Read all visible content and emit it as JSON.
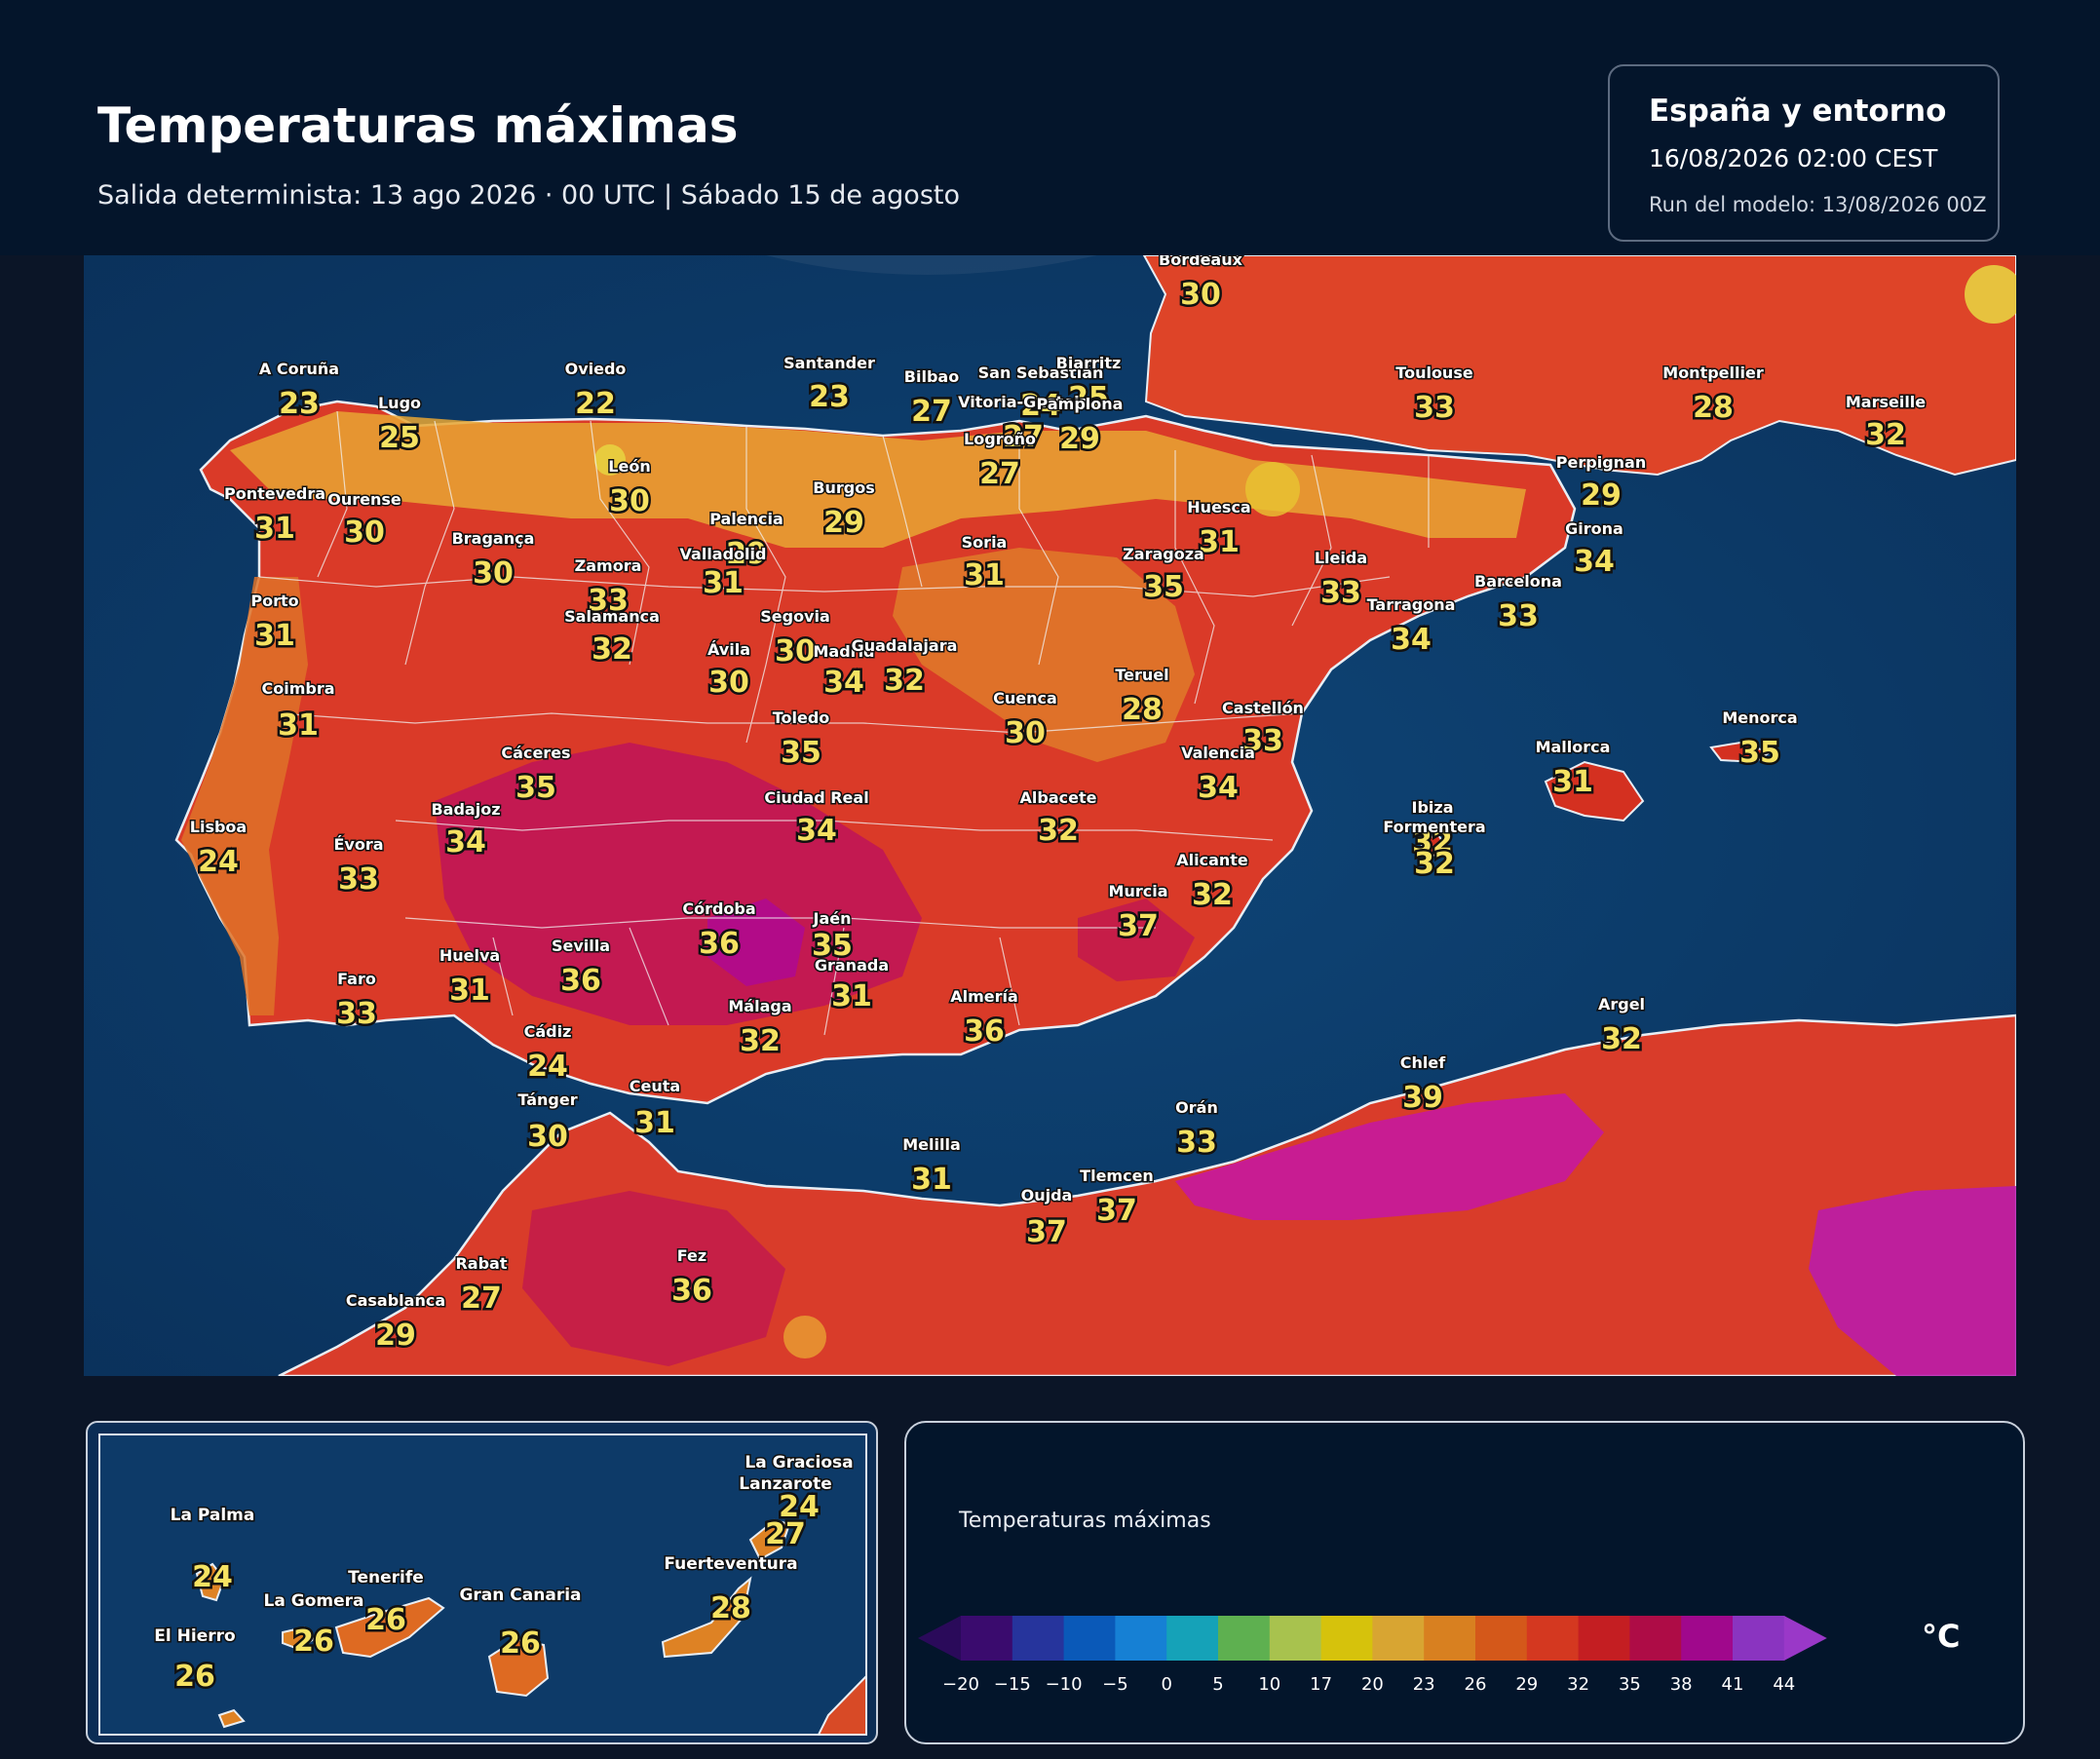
{
  "header": {
    "title": "Temperaturas máximas",
    "subtitle": "Salida determinista: 13 ago 2026 · 00 UTC  |  Sábado 15 de agosto",
    "region": "España y entorno",
    "valid": "16/08/2026  02:00 CEST",
    "run": "Run del modelo: 13/08/2026 00Z"
  },
  "map": {
    "stations": [
      {
        "name": "Bordeaux",
        "temp": "30"
      },
      {
        "name": "A Coruña",
        "temp": "23"
      },
      {
        "name": "Lugo",
        "temp": "25"
      },
      {
        "name": "Oviedo",
        "temp": "22"
      },
      {
        "name": "Santander",
        "temp": "23"
      },
      {
        "name": "Bilbao",
        "temp": "27"
      },
      {
        "name": "San Sebastián",
        "temp": "24"
      },
      {
        "name": "Biarritz",
        "temp": "25"
      },
      {
        "name": "Vitoria-Gasteiz",
        "temp": "27"
      },
      {
        "name": "Pamplona",
        "temp": "29"
      },
      {
        "name": "Logroño",
        "temp": "27"
      },
      {
        "name": "Toulouse",
        "temp": "33"
      },
      {
        "name": "Montpellier",
        "temp": "28"
      },
      {
        "name": "Marseille",
        "temp": "32"
      },
      {
        "name": "Pontevedra",
        "temp": "31"
      },
      {
        "name": "Ourense",
        "temp": "30"
      },
      {
        "name": "León",
        "temp": "30"
      },
      {
        "name": "Burgos",
        "temp": "29"
      },
      {
        "name": "Palencia",
        "temp": "29"
      },
      {
        "name": "Soria",
        "temp": "31"
      },
      {
        "name": "Huesca",
        "temp": "31"
      },
      {
        "name": "Perpignan",
        "temp": "29"
      },
      {
        "name": "Girona",
        "temp": "34"
      },
      {
        "name": "Bragança",
        "temp": "30"
      },
      {
        "name": "Zamora",
        "temp": "33"
      },
      {
        "name": "Valladolid",
        "temp": "31"
      },
      {
        "name": "Zaragoza",
        "temp": "35"
      },
      {
        "name": "Lleida",
        "temp": "33"
      },
      {
        "name": "Barcelona",
        "temp": "33"
      },
      {
        "name": "Porto",
        "temp": "31"
      },
      {
        "name": "Salamanca",
        "temp": "32"
      },
      {
        "name": "Segovia",
        "temp": "30"
      },
      {
        "name": "Tarragona",
        "temp": "34"
      },
      {
        "name": "Ávila",
        "temp": "30"
      },
      {
        "name": "Madrid",
        "temp": "34"
      },
      {
        "name": "Guadalajara",
        "temp": "32"
      },
      {
        "name": "Teruel",
        "temp": "28"
      },
      {
        "name": "Coimbra",
        "temp": "31"
      },
      {
        "name": "Cuenca",
        "temp": "30"
      },
      {
        "name": "Castellón",
        "temp": "33"
      },
      {
        "name": "Toledo",
        "temp": "35"
      },
      {
        "name": "Cáceres",
        "temp": "35"
      },
      {
        "name": "Valencia",
        "temp": "34"
      },
      {
        "name": "Mallorca",
        "temp": "31"
      },
      {
        "name": "Menorca",
        "temp": "35"
      },
      {
        "name": "Badajoz",
        "temp": "34"
      },
      {
        "name": "Ciudad Real",
        "temp": "34"
      },
      {
        "name": "Albacete",
        "temp": "32"
      },
      {
        "name": "Ibiza",
        "temp": "32"
      },
      {
        "name": "Formentera",
        "temp": "32"
      },
      {
        "name": "Lisboa",
        "temp": "24"
      },
      {
        "name": "Évora",
        "temp": "33"
      },
      {
        "name": "Alicante",
        "temp": "32"
      },
      {
        "name": "Córdoba",
        "temp": "36"
      },
      {
        "name": "Jaén",
        "temp": "35"
      },
      {
        "name": "Murcia",
        "temp": "37"
      },
      {
        "name": "Huelva",
        "temp": "31"
      },
      {
        "name": "Sevilla",
        "temp": "36"
      },
      {
        "name": "Granada",
        "temp": "31"
      },
      {
        "name": "Faro",
        "temp": "33"
      },
      {
        "name": "Málaga",
        "temp": "32"
      },
      {
        "name": "Almería",
        "temp": "36"
      },
      {
        "name": "Argel",
        "temp": "32"
      },
      {
        "name": "Cádiz",
        "temp": "24"
      },
      {
        "name": "Chlef",
        "temp": "39"
      },
      {
        "name": "Tánger",
        "temp": "30"
      },
      {
        "name": "Ceuta",
        "temp": "31"
      },
      {
        "name": "Orán",
        "temp": "33"
      },
      {
        "name": "Melilla",
        "temp": "31"
      },
      {
        "name": "Tlemcen",
        "temp": "37"
      },
      {
        "name": "Oujda",
        "temp": "37"
      },
      {
        "name": "Rabat",
        "temp": "27"
      },
      {
        "name": "Fez",
        "temp": "36"
      },
      {
        "name": "Casablanca",
        "temp": "29"
      }
    ]
  },
  "inset": {
    "stations": [
      {
        "name": "La Graciosa",
        "temp": "24"
      },
      {
        "name": "Lanzarote",
        "temp": "27"
      },
      {
        "name": "La Palma",
        "temp": "24"
      },
      {
        "name": "Fuerteventura",
        "temp": "28"
      },
      {
        "name": "Tenerife",
        "temp": "26"
      },
      {
        "name": "La Gomera",
        "temp": "26"
      },
      {
        "name": "Gran Canaria",
        "temp": "26"
      },
      {
        "name": "El Hierro",
        "temp": "26"
      }
    ]
  },
  "legend": {
    "title": "Temperaturas máximas",
    "unit": "°C",
    "ticks": [
      "−20",
      "−15",
      "−10",
      "−5",
      "0",
      "5",
      "10",
      "17",
      "20",
      "23",
      "26",
      "29",
      "32",
      "35",
      "38",
      "41",
      "44"
    ],
    "colors": [
      "#3a0b6e",
      "#26349c",
      "#0a59b8",
      "#1680d4",
      "#15a2b8",
      "#5eb050",
      "#a8c24e",
      "#d6c20c",
      "#d8a532",
      "#d88020",
      "#d4581a",
      "#d43820",
      "#c41e22",
      "#ae0c46",
      "#a0088c",
      "#8a34c0"
    ],
    "extend_low_color": "#2a0a5a",
    "extend_high_color": "#9a38c8"
  }
}
